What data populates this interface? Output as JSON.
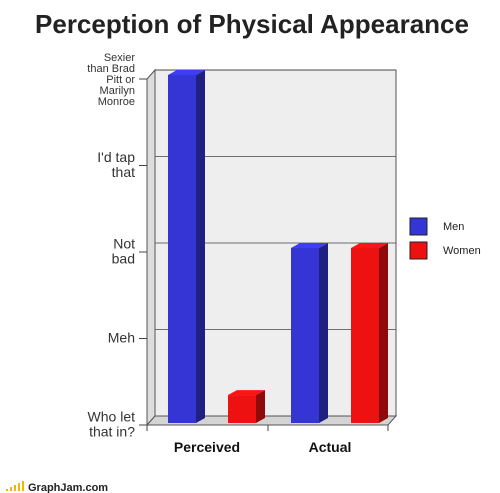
{
  "chart_data": {
    "type": "bar",
    "title": "Perception of Physical Appearance",
    "categories": [
      "Perceived",
      "Actual"
    ],
    "y_tick_labels": [
      "Who let that in?",
      "Meh",
      "Not bad",
      "I'd tap that",
      "Sexier than Brad Pitt or Marilyn Monroe"
    ],
    "ylim": [
      0,
      4
    ],
    "series": [
      {
        "name": "Men",
        "color": "#3535d6",
        "values": [
          4.0,
          2.0
        ]
      },
      {
        "name": "Women",
        "color": "#ee1111",
        "values": [
          0.3,
          2.0
        ]
      }
    ],
    "grid": true,
    "legend_position": "right",
    "xlabel": "",
    "ylabel": ""
  },
  "footer": {
    "brand": "GraphJam.com"
  }
}
